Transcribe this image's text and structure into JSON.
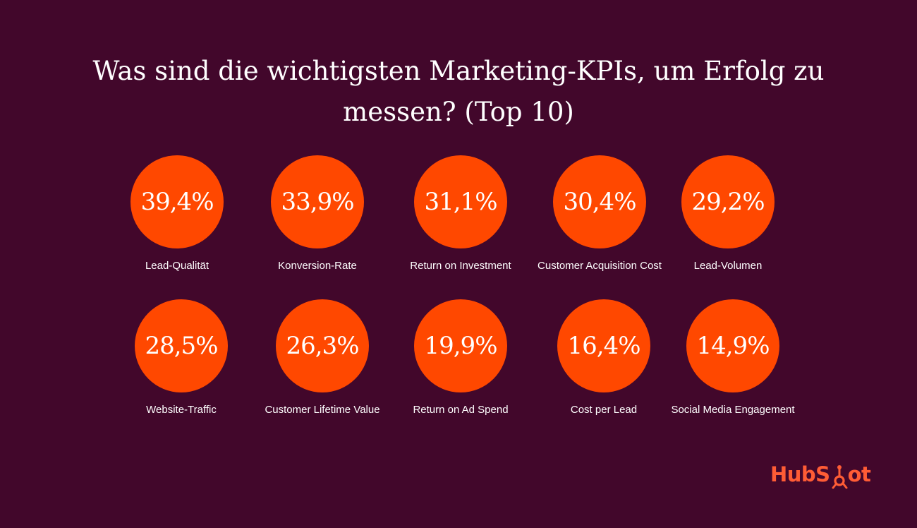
{
  "chart_data": {
    "type": "bubble-grid",
    "title": "Was sind die wichtigsten Marketing-KPIs, um Erfolg zu messen? (Top 10)",
    "items": [
      {
        "label": "Lead-Qualität",
        "value": 39.4,
        "display": "39,4%"
      },
      {
        "label": "Konversion-Rate",
        "value": 33.9,
        "display": "33,9%"
      },
      {
        "label": "Return on Investment",
        "value": 31.1,
        "display": "31,1%"
      },
      {
        "label": "Customer Acquisition Cost",
        "value": 30.4,
        "display": "30,4%"
      },
      {
        "label": "Lead-Volumen",
        "value": 29.2,
        "display": "29,2%"
      },
      {
        "label": "Website-Traffic",
        "value": 28.5,
        "display": "28,5%"
      },
      {
        "label": "Customer Lifetime Value",
        "value": 26.3,
        "display": "26,3%"
      },
      {
        "label": "Return on Ad Spend",
        "value": 19.9,
        "display": "19,9%"
      },
      {
        "label": "Cost per Lead",
        "value": 16.4,
        "display": "16,4%"
      },
      {
        "label": "Social Media Engagement",
        "value": 14.9,
        "display": "14,9%"
      }
    ]
  },
  "logo": {
    "text_before": "HubS",
    "text_after": "ot",
    "icon": "sprocket-icon"
  },
  "colors": {
    "background": "#42072b",
    "bubble": "#ff4800",
    "text": "#ffffff",
    "logo": "#ff5c35"
  }
}
